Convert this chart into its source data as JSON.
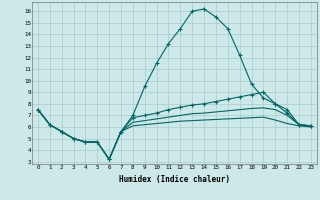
{
  "xlabel": "Humidex (Indice chaleur)",
  "background_color": "#cce8e8",
  "grid_color": "#aacccc",
  "line_color": "#006666",
  "xlim": [
    -0.5,
    23.5
  ],
  "ylim": [
    2.8,
    16.8
  ],
  "xticks": [
    0,
    1,
    2,
    3,
    4,
    5,
    6,
    7,
    8,
    9,
    10,
    11,
    12,
    13,
    14,
    15,
    16,
    17,
    18,
    19,
    20,
    21,
    22,
    23
  ],
  "yticks": [
    3,
    4,
    5,
    6,
    7,
    8,
    9,
    10,
    11,
    12,
    13,
    14,
    15,
    16
  ],
  "series1_x": [
    0,
    1,
    2,
    3,
    4,
    5,
    6,
    7,
    8,
    9,
    10,
    11,
    12,
    13,
    14,
    15,
    16,
    17,
    18,
    19,
    20,
    21,
    22,
    23
  ],
  "series1_y": [
    7.5,
    6.2,
    5.6,
    5.0,
    4.7,
    4.7,
    3.2,
    5.6,
    7.0,
    9.5,
    11.5,
    13.2,
    14.5,
    16.0,
    16.2,
    15.5,
    14.5,
    12.2,
    9.7,
    8.5,
    8.0,
    7.2,
    6.2,
    6.1
  ],
  "series2_x": [
    0,
    1,
    2,
    3,
    4,
    5,
    6,
    7,
    8,
    9,
    10,
    11,
    12,
    13,
    14,
    15,
    16,
    17,
    18,
    19,
    20,
    21,
    22,
    23
  ],
  "series2_y": [
    7.5,
    6.2,
    5.6,
    5.0,
    4.7,
    4.7,
    3.2,
    5.6,
    6.8,
    7.0,
    7.2,
    7.5,
    7.7,
    7.9,
    8.0,
    8.2,
    8.4,
    8.6,
    8.8,
    9.0,
    8.0,
    7.5,
    6.2,
    6.1
  ],
  "series3_x": [
    0,
    1,
    2,
    3,
    4,
    5,
    6,
    7,
    8,
    9,
    10,
    11,
    12,
    13,
    14,
    15,
    16,
    17,
    18,
    19,
    20,
    21,
    22,
    23
  ],
  "series3_y": [
    7.5,
    6.2,
    5.6,
    5.0,
    4.7,
    4.7,
    3.2,
    5.6,
    6.4,
    6.55,
    6.7,
    6.85,
    7.0,
    7.15,
    7.2,
    7.3,
    7.4,
    7.5,
    7.6,
    7.65,
    7.5,
    7.0,
    6.2,
    6.1
  ],
  "series4_x": [
    0,
    1,
    2,
    3,
    4,
    5,
    6,
    7,
    8,
    9,
    10,
    11,
    12,
    13,
    14,
    15,
    16,
    17,
    18,
    19,
    20,
    21,
    22,
    23
  ],
  "series4_y": [
    7.5,
    6.2,
    5.6,
    5.0,
    4.7,
    4.7,
    3.2,
    5.6,
    6.1,
    6.2,
    6.3,
    6.4,
    6.5,
    6.55,
    6.6,
    6.65,
    6.7,
    6.75,
    6.8,
    6.85,
    6.6,
    6.3,
    6.1,
    6.0
  ]
}
